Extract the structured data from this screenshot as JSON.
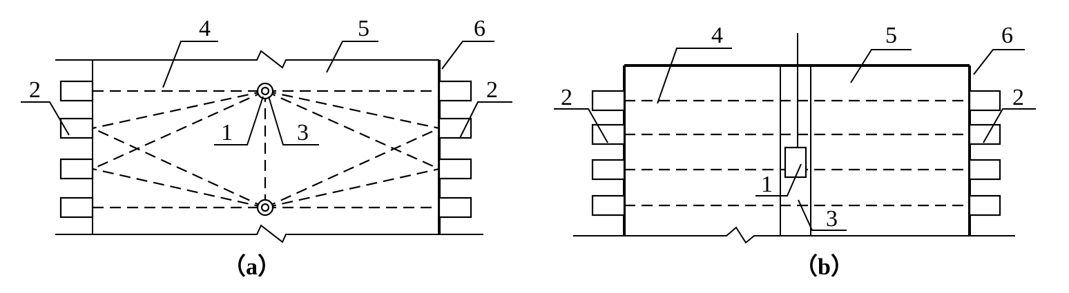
{
  "figure_a": {
    "caption": "（a）",
    "labels": {
      "l1": "1",
      "l2_left": "2",
      "l2_right": "2",
      "l3": "3",
      "l4": "4",
      "l5": "5",
      "l6": "6"
    }
  },
  "figure_b": {
    "caption": "（b）",
    "labels": {
      "l1": "1",
      "l2_left": "2",
      "l2_right": "2",
      "l3": "3",
      "l4": "4",
      "l5": "5",
      "l6": "6"
    }
  },
  "colors": {
    "line": "#000000",
    "background": "#ffffff"
  }
}
